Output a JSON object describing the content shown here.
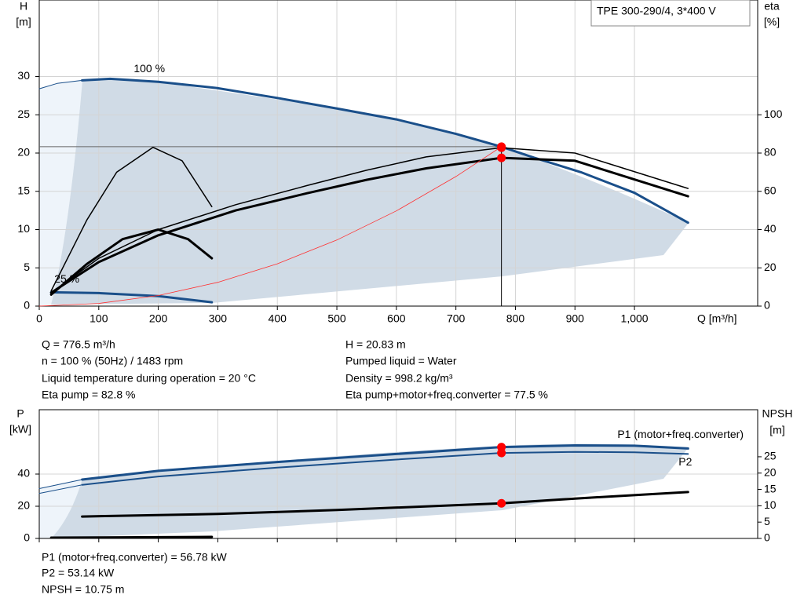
{
  "chart_data": [
    {
      "type": "line",
      "title": "TPE 300-290/4, 3*400 V",
      "x_label": "Q [m³/h]",
      "y_label": [
        "H",
        "[m]"
      ],
      "y2_label": [
        "eta",
        "[%]"
      ],
      "xlim": [
        0,
        1207
      ],
      "xticks": [
        0,
        100,
        200,
        300,
        400,
        500,
        600,
        700,
        800,
        900,
        {
          "value": 1000,
          "label": "1,000"
        }
      ],
      "ylim": [
        0,
        40
      ],
      "yticks": [
        0,
        5,
        10,
        15,
        20,
        25,
        30
      ],
      "y2lim": [
        0,
        160
      ],
      "y2ticks": [
        0,
        20,
        40,
        60,
        80,
        100
      ],
      "grid": true,
      "operating_point": {
        "x": 776.5,
        "y": 20.83
      },
      "series": [
        {
          "name": "100 %",
          "color": "#1a4f8a",
          "width": 3,
          "x": [
            72,
            119,
            200,
            298,
            400,
            501,
            600,
            700,
            776.5,
            831,
            910,
            1000,
            1090
          ],
          "values": [
            29.5,
            29.7,
            29.3,
            28.5,
            27.2,
            25.8,
            24.4,
            22.5,
            20.83,
            19.4,
            17.5,
            14.8,
            10.9
          ]
        },
        {
          "color": "#1a4f8a",
          "width": 1,
          "x": [
            0,
            30,
            72
          ],
          "values": [
            28.4,
            29.1,
            29.5
          ]
        },
        {
          "name": "25 %",
          "color": "#1a4f8a",
          "width": 3,
          "x": [
            20,
            100,
            200,
            290
          ],
          "values": [
            1.8,
            1.7,
            1.3,
            0.5
          ]
        },
        {
          "color": "#000000",
          "width": 1.5,
          "axis": "y2",
          "x": [
            20,
            100,
            200,
            330,
            450,
            550,
            650,
            776.5,
            900,
            1090
          ],
          "values": [
            7,
            25,
            40,
            53,
            63,
            71,
            78,
            82.8,
            80,
            61.5
          ]
        },
        {
          "color": "#000000",
          "width": 3,
          "axis": "y2",
          "x": [
            20,
            100,
            200,
            330,
            450,
            550,
            650,
            776.5,
            900,
            1090
          ],
          "values": [
            7,
            23,
            37,
            50,
            59,
            66,
            72,
            77.5,
            76,
            57.4
          ]
        },
        {
          "color": "#000000",
          "width": 1.5,
          "axis": "y2",
          "x": [
            20,
            80,
            130,
            191,
            240,
            290
          ],
          "values": [
            8,
            45,
            70,
            83,
            76,
            52
          ]
        },
        {
          "color": "#000000",
          "width": 3,
          "axis": "y2",
          "x": [
            20,
            80,
            140,
            200,
            250,
            290
          ],
          "values": [
            6,
            22,
            35,
            40,
            35,
            25
          ]
        },
        {
          "color": "#ff3030",
          "width": 0.8,
          "x": [
            0,
            100,
            200,
            300,
            400,
            500,
            600,
            700,
            776.5
          ],
          "values": [
            0,
            0.345,
            1.38,
            3.11,
            5.53,
            8.64,
            12.44,
            16.93,
            20.83
          ]
        },
        {
          "color": "#ff0000",
          "marker": true,
          "x": [
            776.5
          ],
          "values": [
            20.83
          ]
        },
        {
          "color": "#ff0000",
          "marker": true,
          "axis": "y2",
          "x": [
            776.5
          ],
          "values": [
            82.8
          ]
        },
        {
          "color": "#ff0000",
          "marker": true,
          "axis": "y2",
          "x": [
            776.5
          ],
          "values": [
            77.5
          ]
        }
      ]
    },
    {
      "type": "line",
      "y_label": [
        "P",
        "[kW]"
      ],
      "y2_label": [
        "NPSH",
        "[m]"
      ],
      "xlim": [
        0,
        1207
      ],
      "xticks": [
        0,
        100,
        200,
        300,
        400,
        500,
        600,
        700,
        800,
        900,
        1000
      ],
      "ylim": [
        0,
        80
      ],
      "yticks": [
        0,
        20,
        40
      ],
      "y2lim": [
        0,
        39.4
      ],
      "y2ticks": [
        0,
        5,
        10,
        15,
        20,
        25
      ],
      "grid": true,
      "series": [
        {
          "name": "P1 (motor+freq.converter)",
          "color": "#1a4f8a",
          "width": 3,
          "x": [
            72,
            200,
            400,
            600,
            776.5,
            900,
            1000,
            1090
          ],
          "values": [
            36.6,
            42,
            47.5,
            52.5,
            56.78,
            57.8,
            57.6,
            55.9
          ]
        },
        {
          "color": "#1a4f8a",
          "width": 1,
          "x": [
            0,
            72
          ],
          "values": [
            31,
            36.6
          ]
        },
        {
          "name": "P2",
          "color": "#1a4f8a",
          "width": 2,
          "x": [
            72,
            200,
            400,
            600,
            776.5,
            900,
            1000,
            1090
          ],
          "values": [
            33.3,
            38.5,
            44,
            49,
            53.14,
            53.8,
            53.5,
            52.5
          ]
        },
        {
          "color": "#1a4f8a",
          "width": 1,
          "x": [
            0,
            72
          ],
          "values": [
            28,
            33.3
          ]
        },
        {
          "color": "#000000",
          "width": 3,
          "axis": "y2",
          "x": [
            72,
            300,
            500,
            776.5,
            900,
            1090
          ],
          "values": [
            6.7,
            7.5,
            8.7,
            10.75,
            12.2,
            14.2
          ]
        },
        {
          "color": "#000000",
          "width": 3,
          "x": [
            20,
            290
          ],
          "values": [
            0.5,
            1.0
          ]
        },
        {
          "color": "#ff0000",
          "marker": true,
          "x": [
            776.5
          ],
          "values": [
            56.78
          ]
        },
        {
          "color": "#ff0000",
          "marker": true,
          "x": [
            776.5
          ],
          "values": [
            53.14
          ]
        },
        {
          "color": "#ff0000",
          "marker": true,
          "axis": "y2",
          "x": [
            776.5
          ],
          "values": [
            10.75
          ]
        }
      ]
    }
  ],
  "info": {
    "left": [
      "Q = 776.5 m³/h",
      "n = 100 % (50Hz) / 1483 rpm",
      "Liquid temperature during operation = 20 °C",
      "Eta pump = 82.8 %"
    ],
    "right": [
      "H = 20.83 m",
      "Pumped liquid = Water",
      "Density = 998.2 kg/m³",
      "Eta pump+motor+freq.converter = 77.5 %"
    ],
    "bottom": [
      "P1 (motor+freq.converter) = 56.78 kW",
      "P2 = 53.14 kW",
      "NPSH = 10.75 m"
    ]
  }
}
